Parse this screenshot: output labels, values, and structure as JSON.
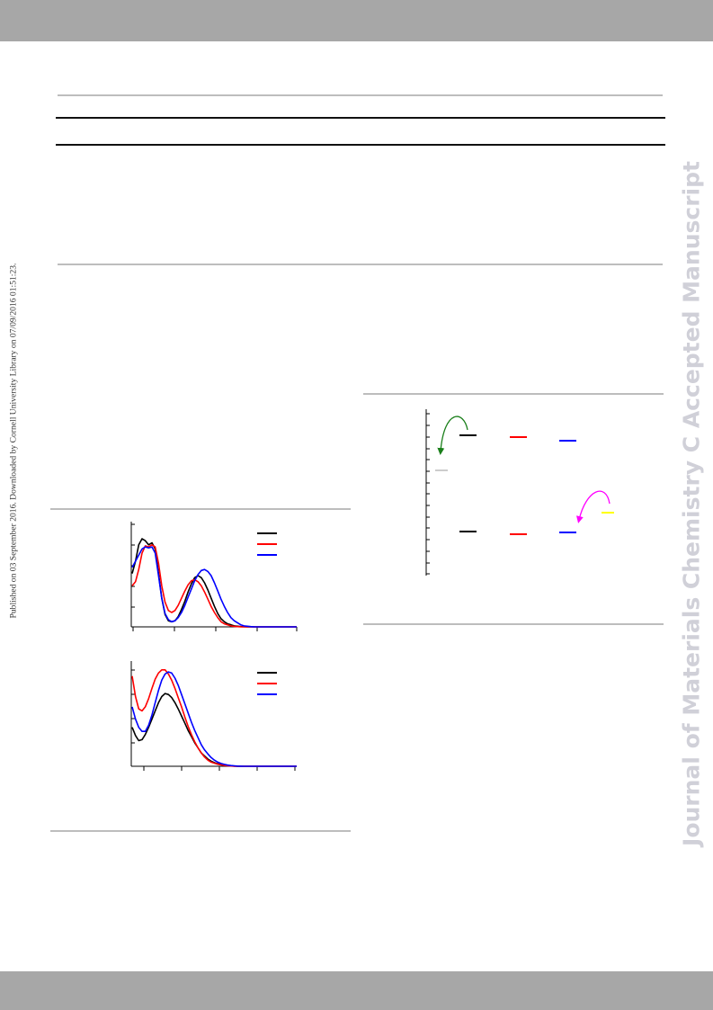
{
  "sidebar_left": {
    "text": "Published on 03 September 2016. Downloaded by Cornell University Library on 07/09/2016 01:51:23."
  },
  "watermark": {
    "text": "Journal of Materials Chemistry C Accepted Manuscript",
    "color": "#d0d0d8"
  },
  "colors": {
    "band": "#a7a7a7",
    "black": "#000000",
    "red": "#ff0000",
    "blue": "#0000ff",
    "green": "#1a7f1a",
    "magenta": "#ff00ff",
    "yellow": "#ffff00"
  },
  "chart_data": [
    {
      "type": "line",
      "title": "",
      "xlabel": "",
      "ylabel": "",
      "xlim": [
        0,
        100
      ],
      "ylim": [
        0,
        100
      ],
      "series": [
        {
          "color": "#000000",
          "x": [
            0,
            2,
            4,
            6,
            8,
            10,
            12,
            14,
            16,
            18,
            20,
            22,
            24,
            26,
            28,
            30,
            32,
            34,
            36,
            38,
            40,
            42,
            44,
            46,
            48,
            50,
            52,
            54,
            56,
            58,
            60,
            62,
            64,
            66,
            68,
            70,
            72,
            74,
            76,
            78,
            80,
            84,
            88,
            92,
            96,
            100
          ],
          "y": [
            52,
            64,
            80,
            86,
            84,
            80,
            82,
            76,
            52,
            28,
            12,
            6,
            5,
            6,
            10,
            17,
            25,
            34,
            42,
            48,
            50,
            48,
            43,
            36,
            28,
            20,
            13,
            8,
            5,
            3,
            2,
            1,
            0.6,
            0.3,
            0.2,
            0.1,
            0,
            0,
            0,
            0,
            0,
            0,
            0,
            0,
            0,
            0
          ]
        },
        {
          "color": "#ff0000",
          "x": [
            0,
            2,
            4,
            6,
            8,
            10,
            12,
            14,
            16,
            18,
            20,
            22,
            24,
            26,
            28,
            30,
            32,
            34,
            36,
            38,
            40,
            42,
            44,
            46,
            48,
            50,
            52,
            54,
            56,
            58,
            60,
            62,
            64,
            66,
            68,
            70,
            72,
            74,
            76,
            78,
            80,
            84,
            88,
            92,
            96,
            100
          ],
          "y": [
            40,
            44,
            56,
            72,
            79,
            78,
            80,
            78,
            62,
            40,
            24,
            16,
            14,
            16,
            21,
            28,
            35,
            41,
            45,
            46,
            44,
            40,
            34,
            27,
            20,
            14,
            9,
            5,
            3,
            2,
            1,
            0.5,
            0.3,
            0.1,
            0,
            0,
            0,
            0,
            0,
            0,
            0,
            0,
            0,
            0,
            0,
            0
          ]
        },
        {
          "color": "#0000ff",
          "x": [
            0,
            2,
            4,
            6,
            8,
            10,
            12,
            14,
            16,
            18,
            20,
            22,
            24,
            26,
            28,
            30,
            32,
            34,
            36,
            38,
            40,
            42,
            44,
            46,
            48,
            50,
            52,
            54,
            56,
            58,
            60,
            62,
            64,
            66,
            68,
            70,
            72,
            74,
            76,
            78,
            80,
            84,
            88,
            92,
            96,
            100
          ],
          "y": [
            58,
            64,
            70,
            76,
            78,
            77,
            78,
            72,
            50,
            28,
            13,
            7,
            5,
            6,
            9,
            14,
            21,
            29,
            37,
            45,
            51,
            55,
            56,
            54,
            50,
            43,
            35,
            27,
            20,
            14,
            9,
            6,
            4,
            2,
            1,
            0.6,
            0.3,
            0.1,
            0,
            0,
            0,
            0,
            0,
            0,
            0,
            0
          ]
        }
      ]
    },
    {
      "type": "line",
      "title": "",
      "xlabel": "",
      "ylabel": "",
      "xlim": [
        0,
        100
      ],
      "ylim": [
        0,
        100
      ],
      "series": [
        {
          "color": "#000000",
          "x": [
            0,
            2,
            4,
            6,
            8,
            10,
            12,
            14,
            16,
            18,
            20,
            22,
            24,
            26,
            28,
            30,
            32,
            34,
            36,
            38,
            40,
            42,
            44,
            46,
            48,
            50,
            52,
            54,
            56,
            58,
            60,
            62,
            64,
            66,
            68,
            70,
            72,
            74,
            76,
            78,
            80,
            84,
            88,
            92,
            96,
            100
          ],
          "y": [
            38,
            30,
            25,
            26,
            31,
            38,
            46,
            54,
            62,
            68,
            71,
            70,
            67,
            62,
            56,
            49,
            42,
            35,
            29,
            23,
            18,
            13,
            10,
            7,
            5,
            3.5,
            2.5,
            1.7,
            1.1,
            0.7,
            0.4,
            0.2,
            0.1,
            0,
            0,
            0,
            0,
            0,
            0,
            0,
            0,
            0,
            0,
            0,
            0,
            0
          ]
        },
        {
          "color": "#ff0000",
          "x": [
            0,
            2,
            4,
            6,
            8,
            10,
            12,
            14,
            16,
            18,
            20,
            22,
            24,
            26,
            28,
            30,
            32,
            34,
            36,
            38,
            40,
            42,
            44,
            46,
            48,
            50,
            52,
            54,
            56,
            58,
            60,
            62,
            64,
            66,
            68,
            70,
            72,
            74,
            76,
            78,
            80,
            84,
            88,
            92,
            96,
            100
          ],
          "y": [
            88,
            68,
            56,
            54,
            58,
            66,
            76,
            85,
            91,
            94,
            94,
            90,
            84,
            76,
            67,
            58,
            48,
            39,
            31,
            24,
            18,
            13,
            9,
            6,
            4,
            3,
            2,
            1.3,
            0.8,
            0.5,
            0.3,
            0.1,
            0,
            0,
            0,
            0,
            0,
            0,
            0,
            0,
            0,
            0,
            0,
            0,
            0,
            0
          ]
        },
        {
          "color": "#0000ff",
          "x": [
            0,
            2,
            4,
            6,
            8,
            10,
            12,
            14,
            16,
            18,
            20,
            22,
            24,
            26,
            28,
            30,
            32,
            34,
            36,
            38,
            40,
            42,
            44,
            46,
            48,
            50,
            52,
            54,
            56,
            58,
            60,
            62,
            64,
            66,
            68,
            70,
            72,
            74,
            76,
            78,
            80,
            84,
            88,
            92,
            96,
            100
          ],
          "y": [
            58,
            46,
            38,
            34,
            34,
            40,
            50,
            62,
            74,
            84,
            90,
            92,
            91,
            86,
            79,
            70,
            61,
            52,
            43,
            35,
            28,
            21,
            16,
            12,
            8.5,
            6,
            4,
            2.7,
            1.8,
            1.1,
            0.7,
            0.4,
            0.2,
            0.1,
            0,
            0,
            0,
            0,
            0,
            0,
            0,
            0,
            0,
            0,
            0,
            0
          ]
        }
      ]
    },
    {
      "type": "diagram",
      "title": "",
      "levels": [
        {
          "color": "#000000",
          "level": "upper",
          "column": 1
        },
        {
          "color": "#ff0000",
          "level": "upper",
          "column": 2
        },
        {
          "color": "#0000ff",
          "level": "upper",
          "column": 3
        },
        {
          "color": "#000000",
          "level": "lower",
          "column": 1
        },
        {
          "color": "#ff0000",
          "level": "lower",
          "column": 2
        },
        {
          "color": "#0000ff",
          "level": "lower",
          "column": 3
        }
      ]
    }
  ]
}
